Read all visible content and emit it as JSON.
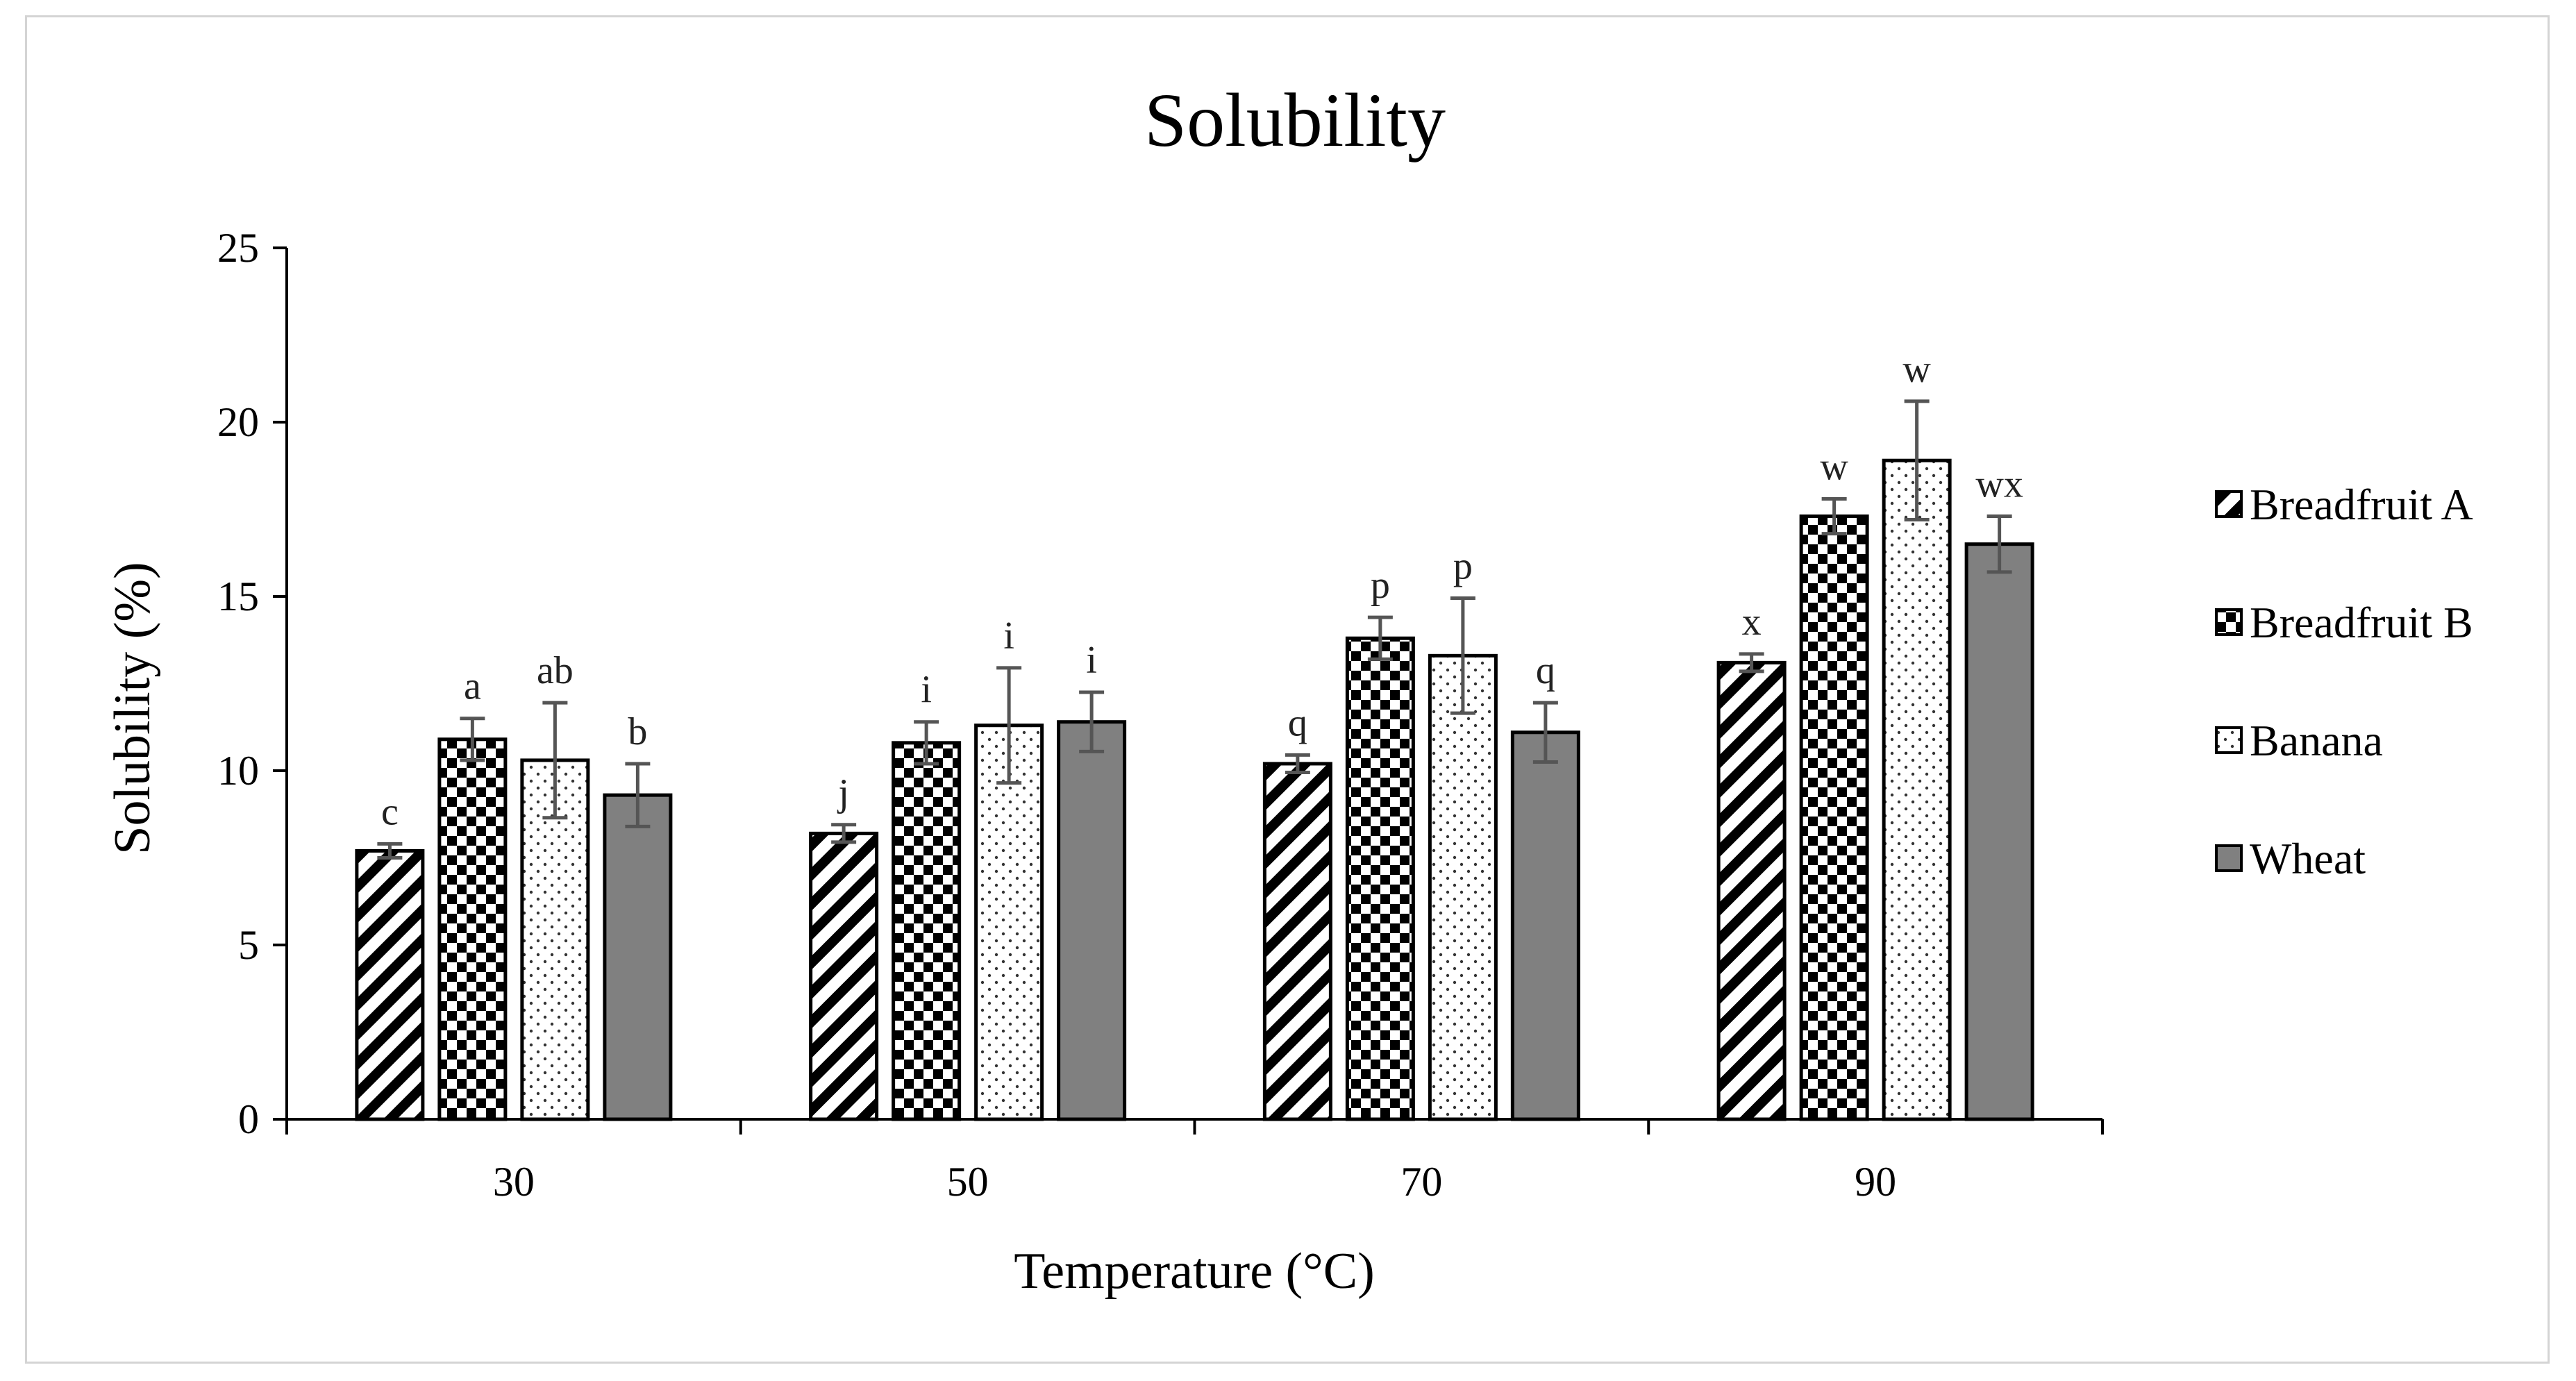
{
  "chart_data": {
    "type": "bar",
    "title": "Solubility",
    "xlabel": "Temperature (°C)",
    "ylabel": "Solubility (%)",
    "ylim": [
      0,
      25
    ],
    "yticks": [
      0,
      5,
      10,
      15,
      20,
      25
    ],
    "categories": [
      "30",
      "50",
      "70",
      "90"
    ],
    "legend_position": "right",
    "grid": false,
    "series": [
      {
        "name": "Breadfruit A",
        "pattern": "diagonal-stripes",
        "values": [
          7.7,
          8.2,
          10.2,
          13.1
        ],
        "errors": [
          0.2,
          0.25,
          0.25,
          0.25
        ],
        "labels": [
          "c",
          "j",
          "q",
          "x"
        ]
      },
      {
        "name": "Breadfruit B",
        "pattern": "checkerboard",
        "values": [
          10.9,
          10.8,
          13.8,
          17.3
        ],
        "errors": [
          0.6,
          0.6,
          0.6,
          0.5
        ],
        "labels": [
          "a",
          "i",
          "p",
          "w"
        ]
      },
      {
        "name": "Banana",
        "pattern": "dots",
        "values": [
          10.3,
          11.3,
          13.3,
          18.9
        ],
        "errors": [
          1.65,
          1.65,
          1.65,
          1.7
        ],
        "labels": [
          "ab",
          "i",
          "p",
          "w"
        ]
      },
      {
        "name": "Wheat",
        "pattern": "solid",
        "color": "#808080",
        "values": [
          9.3,
          11.4,
          11.1,
          16.5
        ],
        "errors": [
          0.9,
          0.85,
          0.85,
          0.8
        ],
        "labels": [
          "b",
          "i",
          "q",
          "wx"
        ]
      }
    ]
  }
}
